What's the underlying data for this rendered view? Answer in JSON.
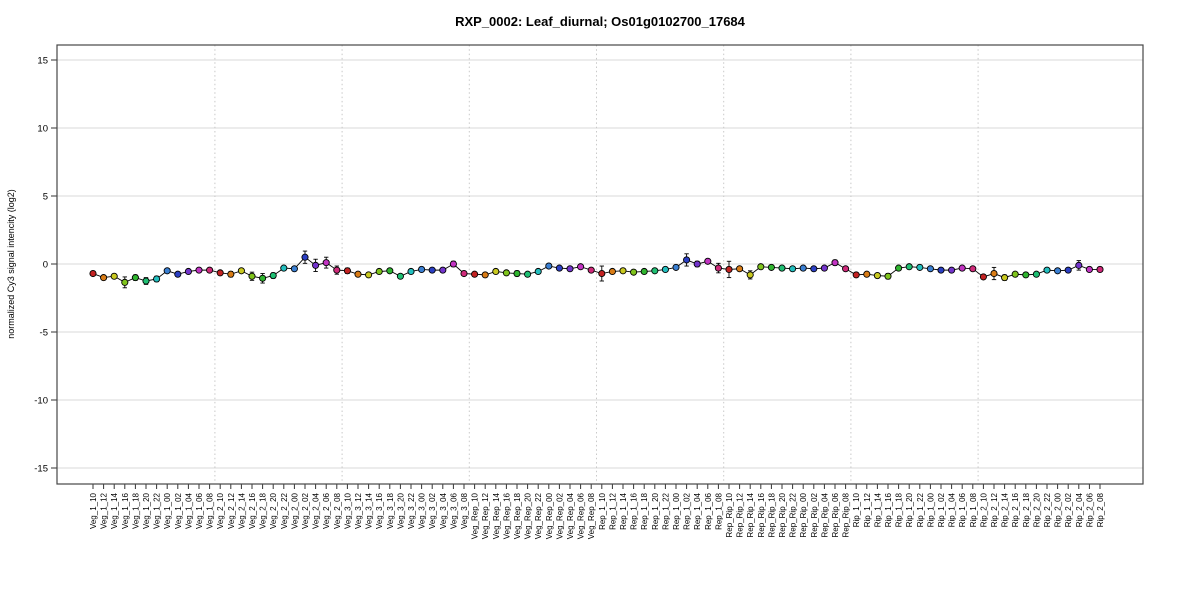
{
  "page": {
    "background": "#ffffff"
  },
  "chart_data": {
    "type": "line",
    "title": "RXP_0002: Leaf_diurnal; Os01g0102700_17684",
    "xlabel": "",
    "ylabel": "normalized Cy3 signal intencity (log2)",
    "ylim": [
      -16,
      16
    ],
    "yticks": [
      15,
      10,
      5,
      0,
      -5,
      -10,
      -15
    ],
    "grid": "horizontal-light-gray",
    "group_separators": "dotted-vertical",
    "legend": "none",
    "groups": [
      "Veg_1",
      "Veg_2",
      "Veg_3",
      "Veg_Rep",
      "Rep_1",
      "Rep_Rip",
      "Rip_1",
      "Rip_2"
    ],
    "timepoints": [
      "10",
      "12",
      "14",
      "16",
      "18",
      "20",
      "22",
      "00",
      "02",
      "04",
      "06",
      "08"
    ],
    "categories": [
      "Veg_1_10",
      "Veg_1_12",
      "Veg_1_14",
      "Veg_1_16",
      "Veg_1_18",
      "Veg_1_20",
      "Veg_1_22",
      "Veg_1_00",
      "Veg_1_02",
      "Veg_1_04",
      "Veg_1_06",
      "Veg_1_08",
      "Veg_2_10",
      "Veg_2_12",
      "Veg_2_14",
      "Veg_2_16",
      "Veg_2_18",
      "Veg_2_20",
      "Veg_2_22",
      "Veg_2_00",
      "Veg_2_02",
      "Veg_2_04",
      "Veg_2_06",
      "Veg_2_08",
      "Veg_3_10",
      "Veg_3_12",
      "Veg_3_14",
      "Veg_3_16",
      "Veg_3_18",
      "Veg_3_20",
      "Veg_3_22",
      "Veg_3_00",
      "Veg_3_02",
      "Veg_3_04",
      "Veg_3_06",
      "Veg_3_08",
      "Veg_Rep_10",
      "Veg_Rep_12",
      "Veg_Rep_14",
      "Veg_Rep_16",
      "Veg_Rep_18",
      "Veg_Rep_20",
      "Veg_Rep_22",
      "Veg_Rep_00",
      "Veg_Rep_02",
      "Veg_Rep_04",
      "Veg_Rep_06",
      "Veg_Rep_08",
      "Rep_1_10",
      "Rep_1_12",
      "Rep_1_14",
      "Rep_1_16",
      "Rep_1_18",
      "Rep_1_20",
      "Rep_1_22",
      "Rep_1_00",
      "Rep_1_02",
      "Rep_1_04",
      "Rep_1_06",
      "Rep_1_08",
      "Rep_Rip_10",
      "Rep_Rip_12",
      "Rep_Rip_14",
      "Rep_Rip_16",
      "Rep_Rip_18",
      "Rep_Rip_20",
      "Rep_Rip_22",
      "Rep_Rip_00",
      "Rep_Rip_02",
      "Rep_Rip_04",
      "Rep_Rip_06",
      "Rep_Rip_08",
      "Rip_1_10",
      "Rip_1_12",
      "Rip_1_14",
      "Rip_1_16",
      "Rip_1_18",
      "Rip_1_20",
      "Rip_1_22",
      "Rip_1_00",
      "Rip_1_02",
      "Rip_1_04",
      "Rip_1_06",
      "Rip_1_08",
      "Rip_2_10",
      "Rip_2_12",
      "Rip_2_14",
      "Rip_2_16",
      "Rip_2_18",
      "Rip_2_20",
      "Rip_2_22",
      "Rip_2_00",
      "Rip_2_02",
      "Rip_2_04",
      "Rip_2_06",
      "Rip_2_08"
    ],
    "values": [
      -0.7,
      -1.0,
      -0.9,
      -1.35,
      -1.0,
      -1.25,
      -1.1,
      -0.5,
      -0.75,
      -0.55,
      -0.45,
      -0.45,
      -0.65,
      -0.75,
      -0.5,
      -0.9,
      -1.05,
      -0.85,
      -0.3,
      -0.35,
      0.5,
      -0.1,
      0.1,
      -0.45,
      -0.5,
      -0.75,
      -0.8,
      -0.55,
      -0.5,
      -0.9,
      -0.55,
      -0.4,
      -0.45,
      -0.45,
      0.0,
      -0.7,
      -0.75,
      -0.8,
      -0.55,
      -0.65,
      -0.7,
      -0.75,
      -0.55,
      -0.15,
      -0.3,
      -0.35,
      -0.2,
      -0.45,
      -0.7,
      -0.55,
      -0.5,
      -0.6,
      -0.55,
      -0.5,
      -0.4,
      -0.25,
      0.3,
      0.0,
      0.2,
      -0.3,
      -0.4,
      -0.35,
      -0.8,
      -0.2,
      -0.25,
      -0.3,
      -0.35,
      -0.3,
      -0.35,
      -0.3,
      0.1,
      -0.35,
      -0.8,
      -0.75,
      -0.85,
      -0.9,
      -0.3,
      -0.2,
      -0.25,
      -0.35,
      -0.45,
      -0.45,
      -0.3,
      -0.35,
      -0.95,
      -0.7,
      -1.0,
      -0.75,
      -0.8,
      -0.75,
      -0.45,
      -0.5,
      -0.45,
      -0.1,
      -0.4,
      -0.4
    ],
    "se": [
      0.1,
      0.1,
      0.15,
      0.4,
      0.2,
      0.25,
      0.2,
      0.1,
      0.15,
      0.1,
      0.1,
      0.1,
      0.1,
      0.2,
      0.1,
      0.3,
      0.35,
      0.2,
      0.1,
      0.15,
      0.45,
      0.45,
      0.4,
      0.3,
      0.2,
      0.1,
      0.1,
      0.1,
      0.15,
      0.1,
      0.1,
      0.1,
      0.1,
      0.15,
      0.2,
      0.1,
      0.1,
      0.1,
      0.15,
      0.1,
      0.2,
      0.1,
      0.1,
      0.1,
      0.15,
      0.1,
      0.1,
      0.1,
      0.55,
      0.1,
      0.15,
      0.1,
      0.1,
      0.1,
      0.1,
      0.1,
      0.45,
      0.2,
      0.15,
      0.35,
      0.6,
      0.15,
      0.3,
      0.1,
      0.1,
      0.1,
      0.1,
      0.15,
      0.1,
      0.1,
      0.2,
      0.1,
      0.15,
      0.1,
      0.15,
      0.2,
      0.1,
      0.1,
      0.1,
      0.1,
      0.15,
      0.1,
      0.1,
      0.1,
      0.15,
      0.45,
      0.2,
      0.1,
      0.15,
      0.1,
      0.1,
      0.1,
      0.15,
      0.35,
      0.1,
      0.1
    ],
    "point_colors_cycle": [
      "#c32222",
      "#d97c16",
      "#c9c920",
      "#7fc41c",
      "#2fb52f",
      "#1fbf73",
      "#23bfbf",
      "#3a7fd2",
      "#2b3fc4",
      "#7334cc",
      "#c233c2",
      "#cf2a7a"
    ],
    "line_color": "#000000",
    "marker_outline": "#000000",
    "gridline_color": "#d8d8d8",
    "separator_color": "#c9c9c9",
    "box_color": "#474747"
  }
}
